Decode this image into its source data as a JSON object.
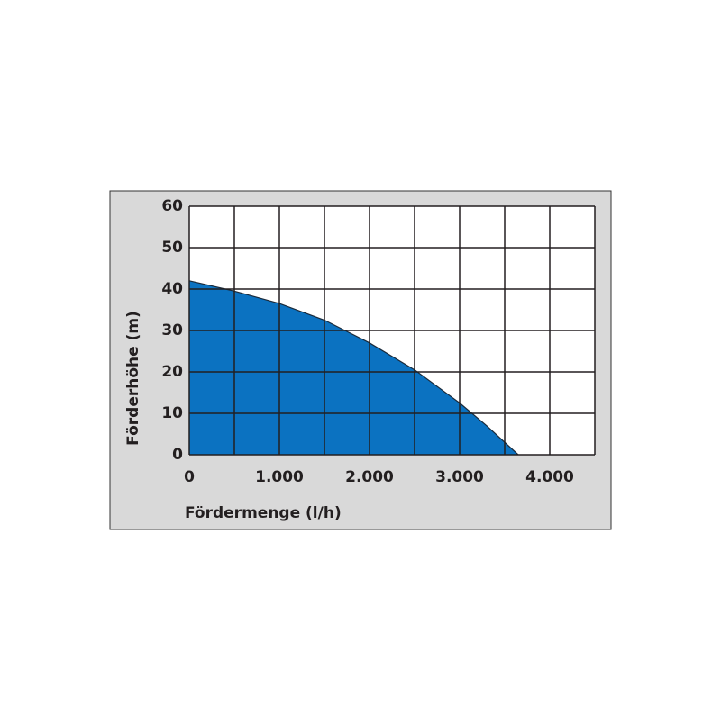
{
  "chart_data": {
    "type": "area",
    "x_label": "Fördermenge (l/h)",
    "y_label": "Förderhöhe (m)",
    "x": [
      0,
      500,
      1000,
      1500,
      2000,
      2500,
      3000,
      3300,
      3650
    ],
    "series": [
      {
        "color": "#0b72c1",
        "values": [
          42,
          39.5,
          36.5,
          32.5,
          27,
          20.5,
          12.5,
          7,
          0
        ]
      }
    ],
    "xlim": [
      0,
      4500
    ],
    "ylim": [
      0,
      60
    ],
    "xticks": [
      {
        "value": 0,
        "label": "0"
      },
      {
        "value": 1000,
        "label": "1.000"
      },
      {
        "value": 2000,
        "label": "2.000"
      },
      {
        "value": 3000,
        "label": "3.000"
      },
      {
        "value": 4000,
        "label": "4.000"
      }
    ],
    "xminorticks": [
      500,
      1500,
      2500,
      3500,
      4500
    ],
    "yticks": [
      0,
      10,
      20,
      30,
      40,
      50,
      60
    ],
    "grid": true
  }
}
